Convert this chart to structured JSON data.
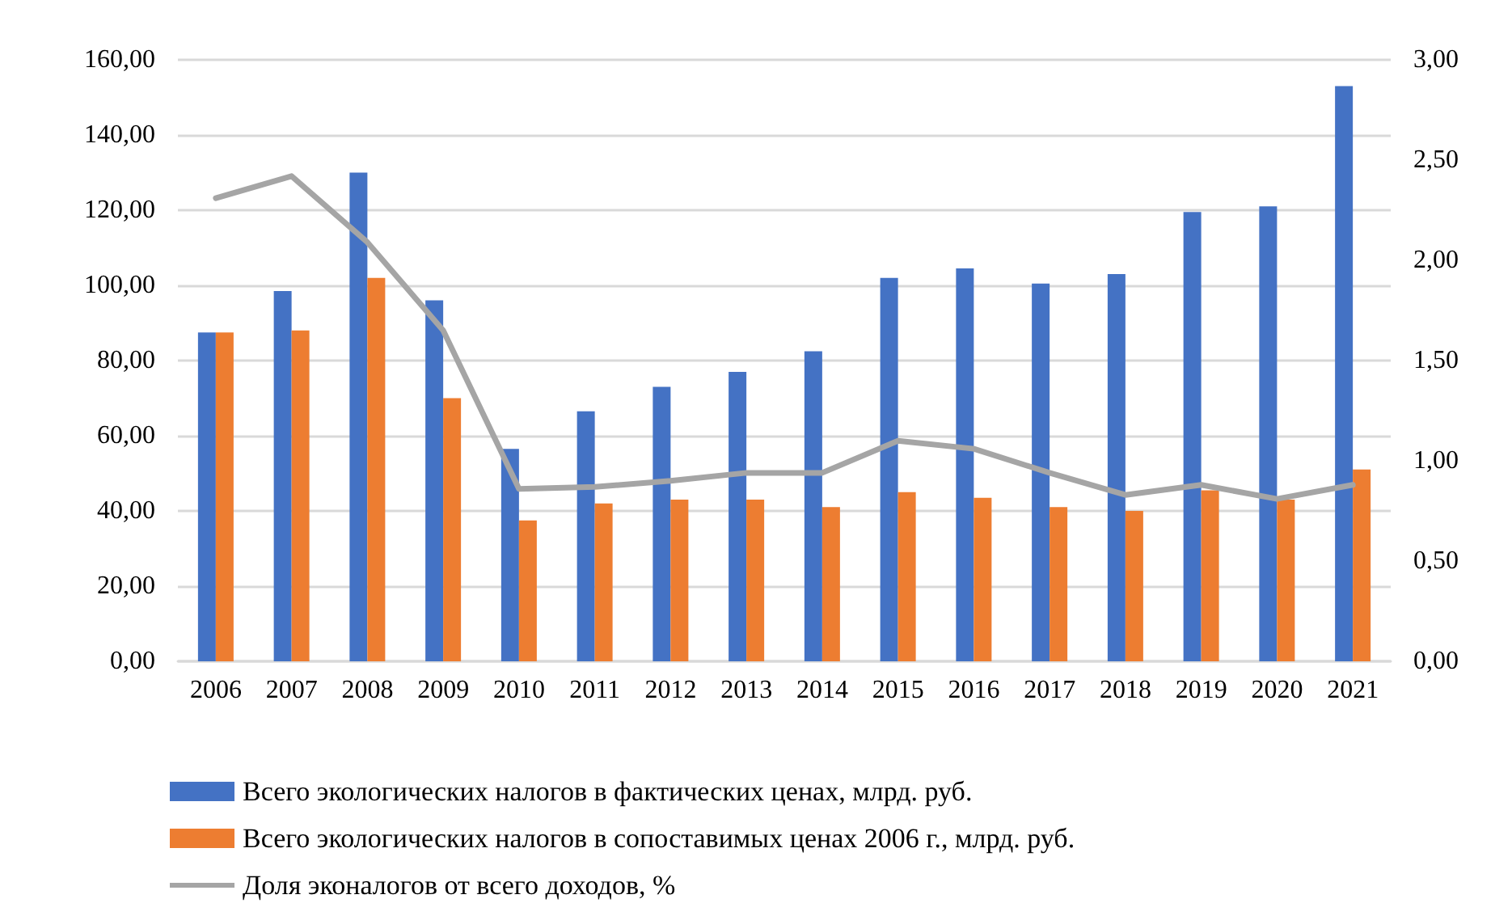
{
  "chart_data": {
    "type": "bar",
    "categories": [
      "2006",
      "2007",
      "2008",
      "2009",
      "2010",
      "2011",
      "2012",
      "2013",
      "2014",
      "2015",
      "2016",
      "2017",
      "2018",
      "2019",
      "2020",
      "2021"
    ],
    "series": [
      {
        "name": "Всего экологических налогов в фактических ценах, млрд. руб.",
        "color": "#4472c4",
        "values": [
          87.5,
          98.5,
          130,
          96,
          56.5,
          66.5,
          73,
          77,
          82.5,
          102,
          104.5,
          100.5,
          103,
          119.5,
          121,
          153
        ]
      },
      {
        "name": "Всего экологических налогов в сопоставимых ценах 2006 г., млрд. руб.",
        "color": "#ed7d31",
        "values": [
          87.5,
          88,
          102,
          70,
          37.5,
          42,
          43,
          43,
          41,
          45,
          43.5,
          41,
          40,
          45.5,
          43,
          51
        ]
      },
      {
        "name": "Доля эконалогов от всего доходов, %",
        "type": "line",
        "axis": "y2",
        "color": "#a5a5a5",
        "marker": "none",
        "values": [
          2.31,
          2.42,
          2.09,
          1.65,
          0.86,
          0.87,
          0.9,
          0.94,
          0.94,
          1.1,
          1.06,
          0.94,
          0.83,
          0.88,
          0.81,
          0.88
        ]
      }
    ],
    "ylim": [
      0,
      160
    ],
    "yticks": [
      {
        "value": 0,
        "label": "0,00"
      },
      {
        "value": 20,
        "label": "20,00"
      },
      {
        "value": 40,
        "label": "40,00"
      },
      {
        "value": 60,
        "label": "60,00"
      },
      {
        "value": 80,
        "label": "80,00"
      },
      {
        "value": 100,
        "label": "100,00"
      },
      {
        "value": 120,
        "label": "120,00"
      },
      {
        "value": 140,
        "label": "140,00"
      },
      {
        "value": 160,
        "label": "160,00"
      }
    ],
    "y2lim": [
      0,
      3
    ],
    "y2ticks": [
      {
        "value": 0,
        "label": "0,00"
      },
      {
        "value": 0.5,
        "label": "0,50"
      },
      {
        "value": 1,
        "label": "1,00"
      },
      {
        "value": 1.5,
        "label": "1,50"
      },
      {
        "value": 2,
        "label": "2,00"
      },
      {
        "value": 2.5,
        "label": "2,50"
      },
      {
        "value": 3,
        "label": "3,00"
      }
    ],
    "grid": "y",
    "legend": "bottom"
  }
}
